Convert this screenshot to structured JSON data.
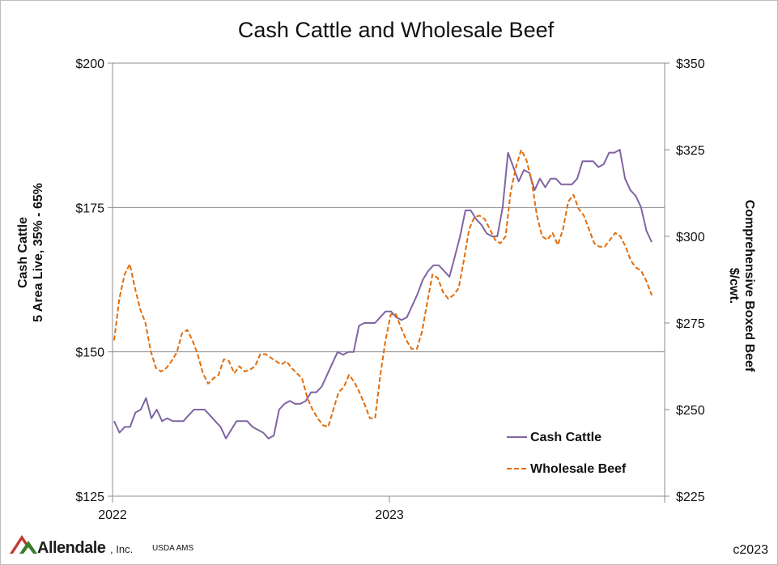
{
  "chart_data": {
    "type": "line",
    "title": "Cash Cattle and Wholesale Beef",
    "ylabel_left": [
      "Cash Cattle",
      "5 Area Live, 35% - 65%"
    ],
    "ylabel_right": [
      "Comprehensive Boxed Beef",
      "$/cwt."
    ],
    "ylim_left": [
      125,
      200
    ],
    "ylim_right": [
      225,
      350
    ],
    "yticks_left": [
      "$125",
      "$150",
      "$175",
      "$200"
    ],
    "yticks_right": [
      "$225",
      "$250",
      "$275",
      "$300",
      "$325",
      "$350"
    ],
    "xticks": [
      "2022",
      "2023"
    ],
    "gridlines": "horizontal at left-axis ticks",
    "legend_placement": "bottom-right",
    "series": [
      {
        "name": "Cash Cattle",
        "axis": "left",
        "color": "#8064A2",
        "dash": "solid",
        "values": [
          138.0,
          136.0,
          137.0,
          137.0,
          139.5,
          140.0,
          142.0,
          138.5,
          140.0,
          138.0,
          138.5,
          138.0,
          138.0,
          138.0,
          139.0,
          140.0,
          140.0,
          140.0,
          139.0,
          138.0,
          137.0,
          135.0,
          136.5,
          138.0,
          138.0,
          138.0,
          137.0,
          136.5,
          136.0,
          135.0,
          135.5,
          140.0,
          141.0,
          141.5,
          141.0,
          141.0,
          141.5,
          143.0,
          143.0,
          144.0,
          146.0,
          148.0,
          150.0,
          149.5,
          150.0,
          150.0,
          154.5,
          155.0,
          155.0,
          155.0,
          156.0,
          157.0,
          157.0,
          156.0,
          155.5,
          156.0,
          158.0,
          160.0,
          162.5,
          164.0,
          165.0,
          165.0,
          164.0,
          163.0,
          166.5,
          170.0,
          174.5,
          174.5,
          173.0,
          172.0,
          170.5,
          170.0,
          170.0,
          175.0,
          184.5,
          182.0,
          179.5,
          181.5,
          181.0,
          178.0,
          180.0,
          178.5,
          180.0,
          180.0,
          179.0,
          179.0,
          179.0,
          180.0,
          183.0,
          183.0,
          183.0,
          182.0,
          182.5,
          184.5,
          184.5,
          185.0,
          180.0,
          178.0,
          177.0,
          175.0,
          171.0,
          169.0
        ]
      },
      {
        "name": "Wholesale Beef",
        "axis": "right",
        "color": "#E36C09",
        "dash": "dashed",
        "values": [
          270.0,
          282.0,
          289.0,
          292.0,
          285.0,
          279.0,
          275.0,
          267.0,
          262.0,
          261.0,
          262.0,
          264.0,
          266.5,
          272.0,
          273.0,
          270.0,
          266.0,
          260.5,
          257.5,
          259.0,
          260.0,
          264.5,
          264.0,
          260.5,
          262.5,
          261.0,
          261.5,
          262.5,
          266.0,
          266.0,
          265.0,
          264.0,
          263.0,
          264.0,
          262.0,
          260.5,
          259.0,
          253.5,
          250.0,
          247.5,
          245.5,
          245.0,
          250.0,
          255.0,
          256.5,
          260.0,
          258.0,
          255.0,
          251.5,
          247.5,
          247.5,
          260.0,
          270.0,
          277.5,
          277.5,
          273.5,
          270.0,
          267.5,
          267.5,
          272.5,
          281.0,
          289.0,
          288.0,
          284.0,
          282.0,
          283.0,
          285.0,
          293.0,
          302.0,
          305.5,
          306.0,
          305.0,
          302.0,
          299.0,
          298.0,
          300.0,
          313.0,
          320.0,
          325.0,
          322.0,
          316.0,
          306.0,
          300.0,
          299.0,
          301.0,
          297.5,
          302.0,
          310.0,
          312.0,
          308.0,
          306.0,
          302.0,
          298.0,
          297.0,
          297.0,
          299.0,
          301.0,
          300.0,
          297.0,
          293.0,
          291.0,
          290.0,
          287.0,
          283.0
        ]
      }
    ]
  },
  "legend": {
    "cash_cattle": "Cash Cattle",
    "wholesale_beef": "Wholesale Beef"
  },
  "footer": {
    "logo_name": "Allendale",
    "logo_suffix": ", Inc.",
    "source": "USDA AMS",
    "copyright": "c2023"
  },
  "colors": {
    "cash_cattle": "#8064A2",
    "wholesale_beef": "#E36C09",
    "gridline": "#8c8c8c",
    "logo_red": "#c0392b",
    "logo_green": "#3a7d2c"
  }
}
